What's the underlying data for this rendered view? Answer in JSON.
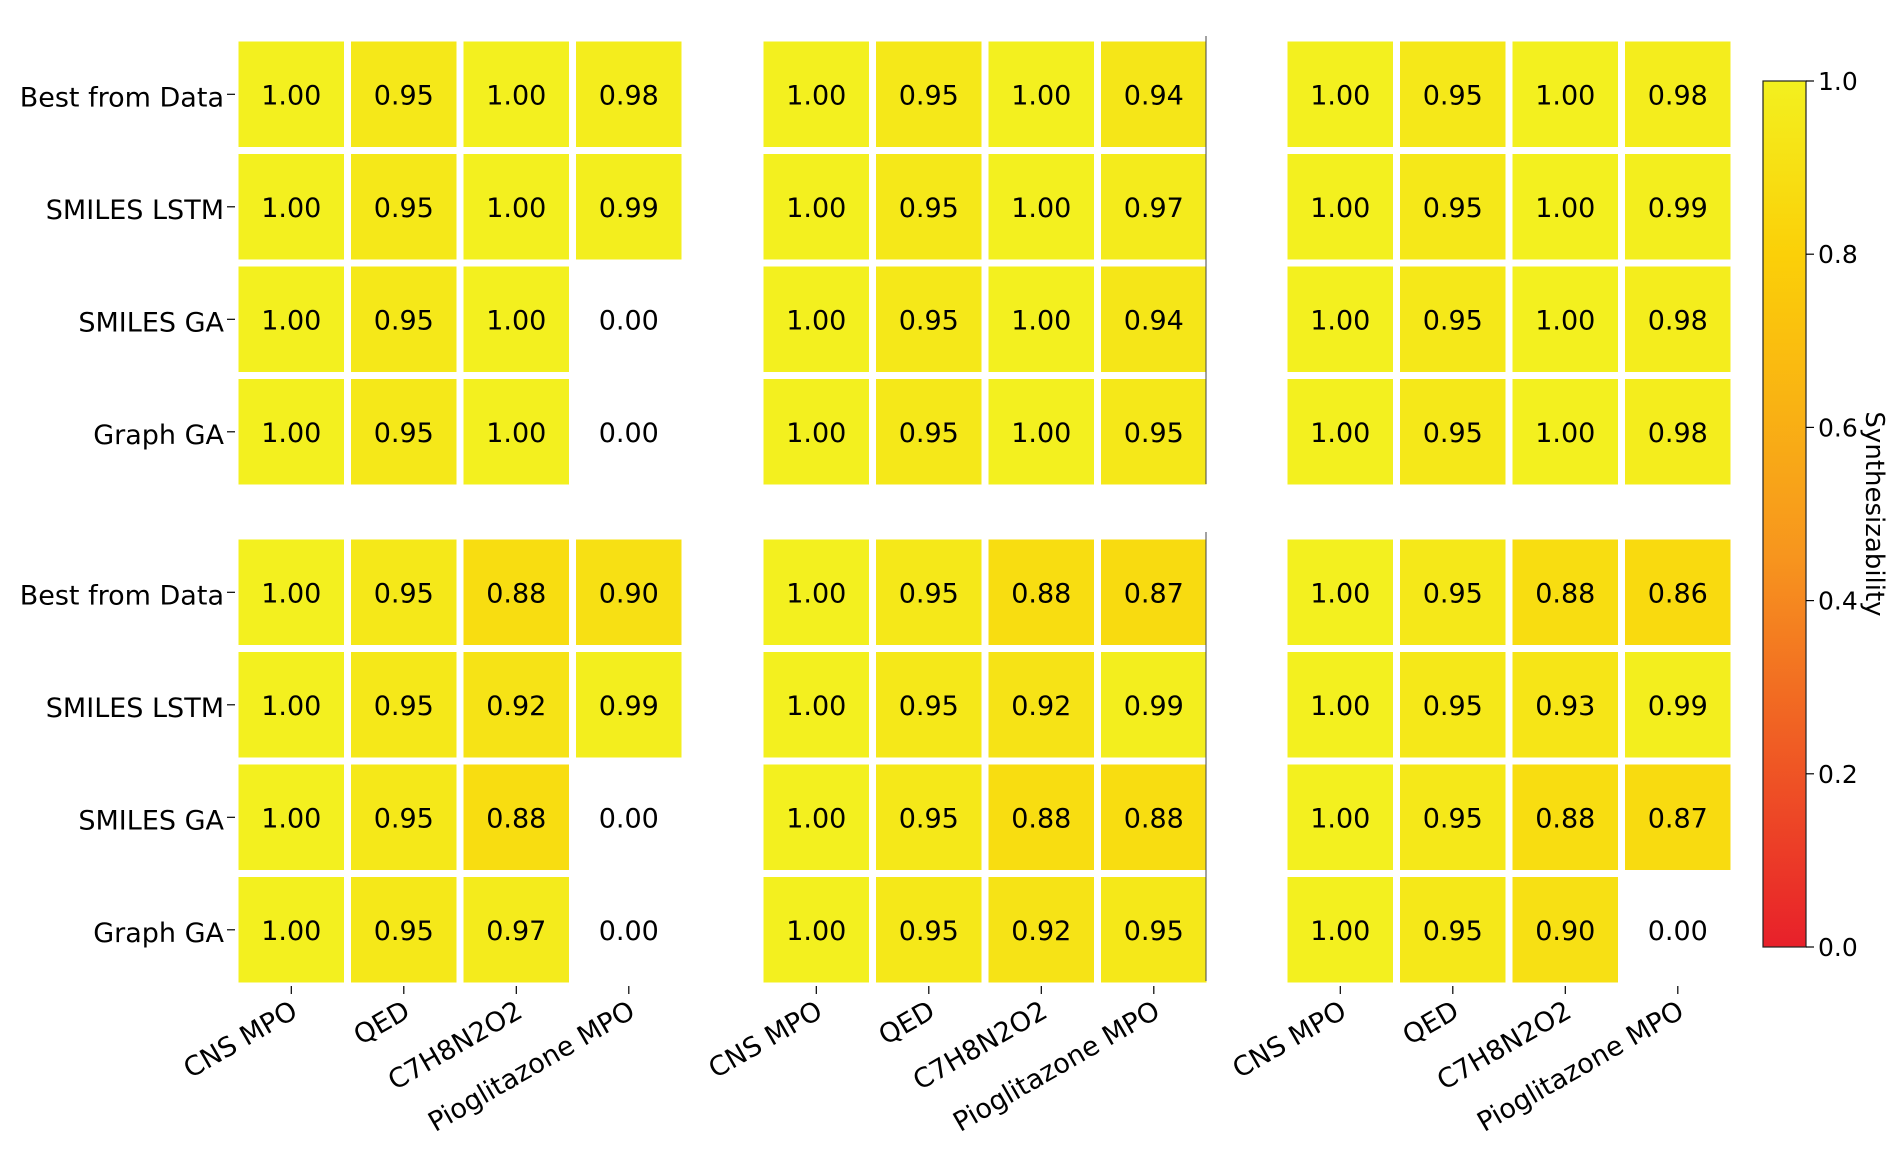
{
  "chart_data": {
    "type": "heatmap",
    "rows": [
      "Best from Data",
      "SMILES LSTM",
      "SMILES GA",
      "Graph GA"
    ],
    "columns": [
      "CNS MPO",
      "QED",
      "C7H8N2O2",
      "Pioglitazone MPO"
    ],
    "panels": [
      {
        "values": [
          [
            1.0,
            0.95,
            1.0,
            0.98
          ],
          [
            1.0,
            0.95,
            1.0,
            0.99
          ],
          [
            1.0,
            0.95,
            1.0,
            0.0
          ],
          [
            1.0,
            0.95,
            1.0,
            0.0
          ]
        ],
        "labels": [
          [
            "1.00",
            "0.95",
            "1.00",
            "0.98"
          ],
          [
            "1.00",
            "0.95",
            "1.00",
            "0.99"
          ],
          [
            "1.00",
            "0.95",
            "1.00",
            "0.00"
          ],
          [
            "1.00",
            "0.95",
            "1.00",
            "0.00"
          ]
        ]
      },
      {
        "values": [
          [
            1.0,
            0.95,
            1.0,
            0.94
          ],
          [
            1.0,
            0.95,
            1.0,
            0.97
          ],
          [
            1.0,
            0.95,
            1.0,
            0.94
          ],
          [
            1.0,
            0.95,
            1.0,
            0.95
          ]
        ],
        "labels": [
          [
            "1.00",
            "0.95",
            "1.00",
            "0.94"
          ],
          [
            "1.00",
            "0.95",
            "1.00",
            "0.97"
          ],
          [
            "1.00",
            "0.95",
            "1.00",
            "0.94"
          ],
          [
            "1.00",
            "0.95",
            "1.00",
            "0.95"
          ]
        ]
      },
      {
        "values": [
          [
            1.0,
            0.95,
            1.0,
            0.98
          ],
          [
            1.0,
            0.95,
            1.0,
            0.99
          ],
          [
            1.0,
            0.95,
            1.0,
            0.98
          ],
          [
            1.0,
            0.95,
            1.0,
            0.98
          ]
        ],
        "labels": [
          [
            "1.00",
            "0.95",
            "1.00",
            "0.98"
          ],
          [
            "1.00",
            "0.95",
            "1.00",
            "0.99"
          ],
          [
            "1.00",
            "0.95",
            "1.00",
            "0.98"
          ],
          [
            "1.00",
            "0.95",
            "1.00",
            "0.98"
          ]
        ]
      },
      {
        "values": [
          [
            1.0,
            0.95,
            0.88,
            0.9
          ],
          [
            1.0,
            0.95,
            0.92,
            0.99
          ],
          [
            1.0,
            0.95,
            0.88,
            0.0
          ],
          [
            1.0,
            0.95,
            0.97,
            0.0
          ]
        ],
        "labels": [
          [
            "1.00",
            "0.95",
            "0.88",
            "0.90"
          ],
          [
            "1.00",
            "0.95",
            "0.92",
            "0.99"
          ],
          [
            "1.00",
            "0.95",
            "0.88",
            "0.00"
          ],
          [
            "1.00",
            "0.95",
            "0.97",
            "0.00"
          ]
        ]
      },
      {
        "values": [
          [
            1.0,
            0.95,
            0.88,
            0.87
          ],
          [
            1.0,
            0.95,
            0.92,
            0.99
          ],
          [
            1.0,
            0.95,
            0.88,
            0.88
          ],
          [
            1.0,
            0.95,
            0.92,
            0.95
          ]
        ],
        "labels": [
          [
            "1.00",
            "0.95",
            "0.88",
            "0.87"
          ],
          [
            "1.00",
            "0.95",
            "0.92",
            "0.99"
          ],
          [
            "1.00",
            "0.95",
            "0.88",
            "0.88"
          ],
          [
            "1.00",
            "0.95",
            "0.92",
            "0.95"
          ]
        ]
      },
      {
        "values": [
          [
            1.0,
            0.95,
            0.88,
            0.86
          ],
          [
            1.0,
            0.95,
            0.93,
            0.99
          ],
          [
            1.0,
            0.95,
            0.88,
            0.87
          ],
          [
            1.0,
            0.95,
            0.9,
            0.0
          ]
        ],
        "labels": [
          [
            "1.00",
            "0.95",
            "0.88",
            "0.86"
          ],
          [
            "1.00",
            "0.95",
            "0.93",
            "0.99"
          ],
          [
            "1.00",
            "0.95",
            "0.88",
            "0.87"
          ],
          [
            "1.00",
            "0.95",
            "0.90",
            "0.00"
          ]
        ]
      }
    ],
    "colorbar": {
      "label": "Synthesizability",
      "range": [
        0.0,
        1.0
      ],
      "ticks": [
        "0.0",
        "0.2",
        "0.4",
        "0.6",
        "0.8",
        "1.0"
      ],
      "colormap": [
        "#e8202a",
        "#f7951e",
        "#fbd008",
        "#f3f01f"
      ]
    },
    "empty_value_rule": "cells with value 0.00 are not filled (white)"
  }
}
